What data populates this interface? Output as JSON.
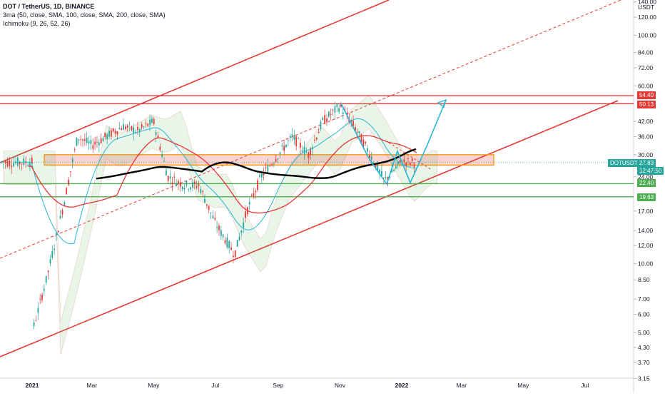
{
  "header": {
    "title": "DOT / TetherUS, 1D, BINANCE",
    "indicator1": "3ma (50, close, SMA, 100, close, SMA, 200, close, SMA)",
    "indicator2": "Ichimoku (9, 26, 52, 26)"
  },
  "axis": {
    "currency": "USDT",
    "y_ticks": [
      "140.00",
      "120.00",
      "100.00",
      "84.00",
      "72.00",
      "60.00",
      "42.00",
      "36.00",
      "30.00",
      "24.00",
      "17.00",
      "14.00",
      "12.00",
      "10.00",
      "8.50",
      "7.00",
      "6.00",
      "5.00",
      "4.30",
      "3.70",
      "3.15"
    ],
    "x_ticks": [
      "2021",
      "Mar",
      "May",
      "Jul",
      "Sep",
      "Nov",
      "2022",
      "Mar",
      "May",
      "Jul"
    ]
  },
  "price_tags": {
    "level_54_40": "54.40",
    "level_50_13": "50.13",
    "symbol": "DOTUSDT",
    "last_price": "27.83",
    "countdown": "12:47:50",
    "level_22_40": "22.40",
    "level_19_63": "19.63"
  },
  "colors": {
    "red": "#e53935",
    "green": "#4caf50",
    "teal": "#26a69a",
    "cyan": "#29b6d6",
    "orange": "#ff9800",
    "black": "#000000"
  },
  "chart_data": {
    "type": "line",
    "symbol": "DOT / TetherUS",
    "scale": "log",
    "ylim": [
      3.15,
      150
    ],
    "horizontal_levels": [
      54.4,
      50.13,
      22.4,
      19.63
    ],
    "support_zone": [
      27.0,
      30.0
    ],
    "last_price": 27.83,
    "series": [
      {
        "name": "DOT / TetherUS",
        "x": [
          "2021-01-01",
          "2021-01-15",
          "2021-02-01",
          "2021-02-15",
          "2021-03-01",
          "2021-03-15",
          "2021-04-01",
          "2021-04-15",
          "2021-05-01",
          "2021-05-15",
          "2021-06-01",
          "2021-06-15",
          "2021-07-01",
          "2021-07-20",
          "2021-08-01",
          "2021-08-15",
          "2021-09-01",
          "2021-09-15",
          "2021-10-01",
          "2021-10-15",
          "2021-11-01",
          "2021-11-15",
          "2021-12-01",
          "2021-12-15",
          "2022-01-01",
          "2022-01-10"
        ],
        "values": [
          5.0,
          8.5,
          18,
          36,
          33,
          36,
          40,
          38,
          42,
          24,
          22,
          22,
          15,
          11,
          17,
          24,
          30,
          36,
          30,
          42,
          49,
          40,
          30,
          23,
          28,
          27.8
        ]
      }
    ]
  }
}
